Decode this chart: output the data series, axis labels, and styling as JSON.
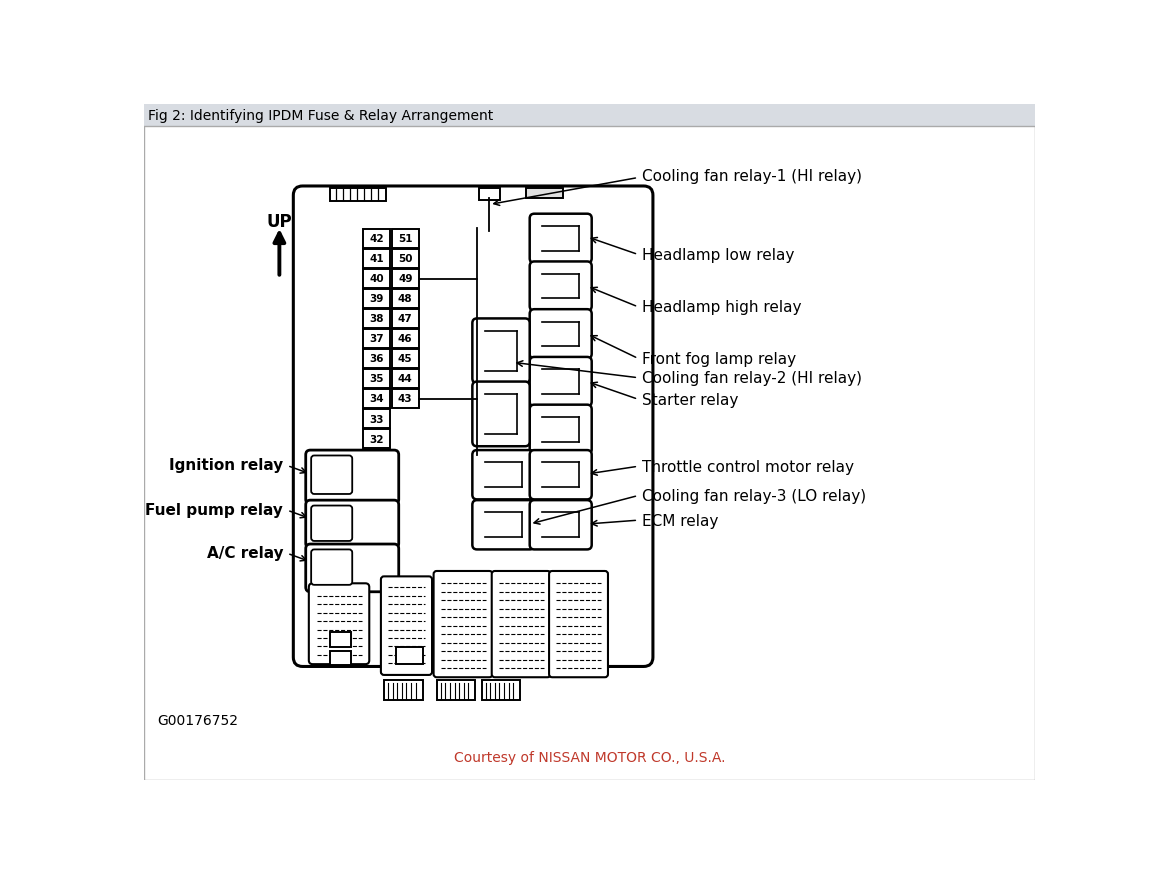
{
  "title": "Fig 2: Identifying IPDM Fuse & Relay Arrangement",
  "courtesy_text": "Courtesy of NISSAN MOTOR CO., U.S.A.",
  "code_text": "G00176752",
  "up_label": "UP",
  "fuse_left": [
    42,
    41,
    40,
    39,
    38,
    37,
    36,
    35,
    34,
    33,
    32
  ],
  "fuse_right": [
    51,
    50,
    49,
    48,
    47,
    46,
    45,
    44,
    43
  ],
  "labels_right": [
    "Cooling fan relay-1 (HI relay)",
    "Headlamp low relay",
    "Headlamp high relay",
    "Front fog lamp relay",
    "Cooling fan relay-2 (HI relay)",
    "Starter relay",
    "Throttle control motor relay",
    "Cooling fan relay-3 (LO relay)",
    "ECM relay"
  ],
  "labels_left": [
    "Ignition relay",
    "Fuel pump relay",
    "A/C relay"
  ],
  "line_color": "#000000",
  "bg_color": "#ffffff",
  "title_bar_color": "#d8dce2",
  "courtesy_color": "#c0392b"
}
